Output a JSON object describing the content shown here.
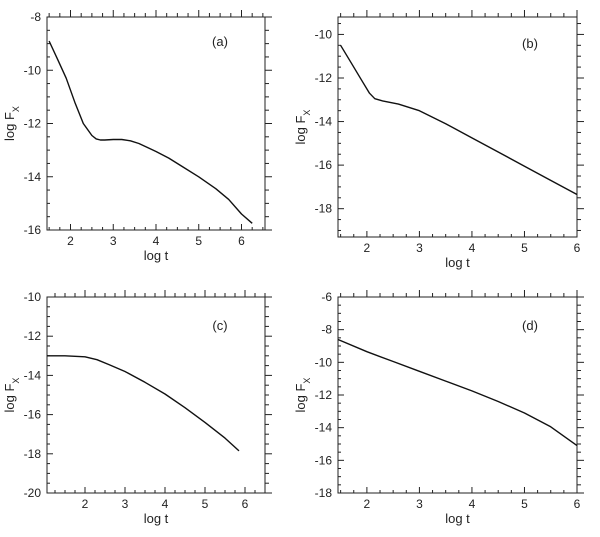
{
  "chart_data": [
    {
      "type": "line",
      "panel_label": "(a)",
      "xlabel": "log t",
      "ylabel": "log F",
      "ylabel_subscript": "X",
      "xlim": [
        1.45,
        6.55
      ],
      "ylim": [
        -16,
        -8
      ],
      "xticks": [
        2,
        3,
        4,
        5,
        6
      ],
      "yticks": [
        -16,
        -14,
        -12,
        -10,
        -8
      ],
      "series": [
        {
          "x": [
            1.5,
            1.7,
            1.9,
            2.1,
            2.3,
            2.5,
            2.6,
            2.7,
            2.8,
            3.0,
            3.2,
            3.4,
            3.6,
            3.8,
            4.0,
            4.3,
            4.6,
            5.0,
            5.4,
            5.7,
            6.0,
            6.25
          ],
          "y": [
            -8.9,
            -9.6,
            -10.3,
            -11.2,
            -12.0,
            -12.45,
            -12.58,
            -12.62,
            -12.62,
            -12.6,
            -12.6,
            -12.65,
            -12.75,
            -12.9,
            -13.05,
            -13.3,
            -13.6,
            -14.0,
            -14.45,
            -14.85,
            -15.4,
            -15.75
          ]
        }
      ]
    },
    {
      "type": "line",
      "panel_label": "(b)",
      "xlabel": "log t",
      "ylabel": "log F",
      "ylabel_subscript": "X",
      "xlim": [
        1.45,
        6.0
      ],
      "ylim": [
        -19.3,
        -9.2
      ],
      "xticks": [
        2,
        3,
        4,
        5,
        6
      ],
      "yticks": [
        -18,
        -16,
        -14,
        -12,
        -10
      ],
      "series": [
        {
          "x": [
            1.5,
            1.7,
            1.9,
            2.05,
            2.15,
            2.3,
            2.6,
            3.0,
            3.5,
            4.0,
            4.5,
            5.0,
            5.5,
            6.0
          ],
          "y": [
            -10.5,
            -11.3,
            -12.1,
            -12.7,
            -12.95,
            -13.05,
            -13.2,
            -13.5,
            -14.1,
            -14.75,
            -15.4,
            -16.05,
            -16.7,
            -17.35
          ]
        }
      ]
    },
    {
      "type": "line",
      "panel_label": "(c)",
      "xlabel": "log t",
      "ylabel": "log F",
      "ylabel_subscript": "X",
      "xlim": [
        1.05,
        6.5
      ],
      "ylim": [
        -20,
        -10
      ],
      "xticks": [
        2,
        3,
        4,
        5,
        6
      ],
      "yticks": [
        -20,
        -18,
        -16,
        -14,
        -12,
        -10
      ],
      "series": [
        {
          "x": [
            1.05,
            1.5,
            2.0,
            2.3,
            2.6,
            3.0,
            3.5,
            4.0,
            4.5,
            5.0,
            5.5,
            5.85
          ],
          "y": [
            -13.0,
            -13.0,
            -13.05,
            -13.2,
            -13.45,
            -13.8,
            -14.35,
            -14.95,
            -15.65,
            -16.4,
            -17.2,
            -17.85
          ]
        }
      ]
    },
    {
      "type": "line",
      "panel_label": "(d)",
      "xlabel": "log t",
      "ylabel": "log F",
      "ylabel_subscript": "X",
      "xlim": [
        1.45,
        6.0
      ],
      "ylim": [
        -18,
        -6
      ],
      "xticks": [
        2,
        3,
        4,
        5,
        6
      ],
      "yticks": [
        -18,
        -16,
        -14,
        -12,
        -10,
        -8,
        -6
      ],
      "series": [
        {
          "x": [
            1.45,
            2.0,
            2.5,
            3.0,
            3.5,
            4.0,
            4.5,
            5.0,
            5.5,
            6.0
          ],
          "y": [
            -8.6,
            -9.35,
            -9.95,
            -10.55,
            -11.15,
            -11.75,
            -12.4,
            -13.1,
            -13.95,
            -15.1
          ]
        }
      ]
    }
  ]
}
